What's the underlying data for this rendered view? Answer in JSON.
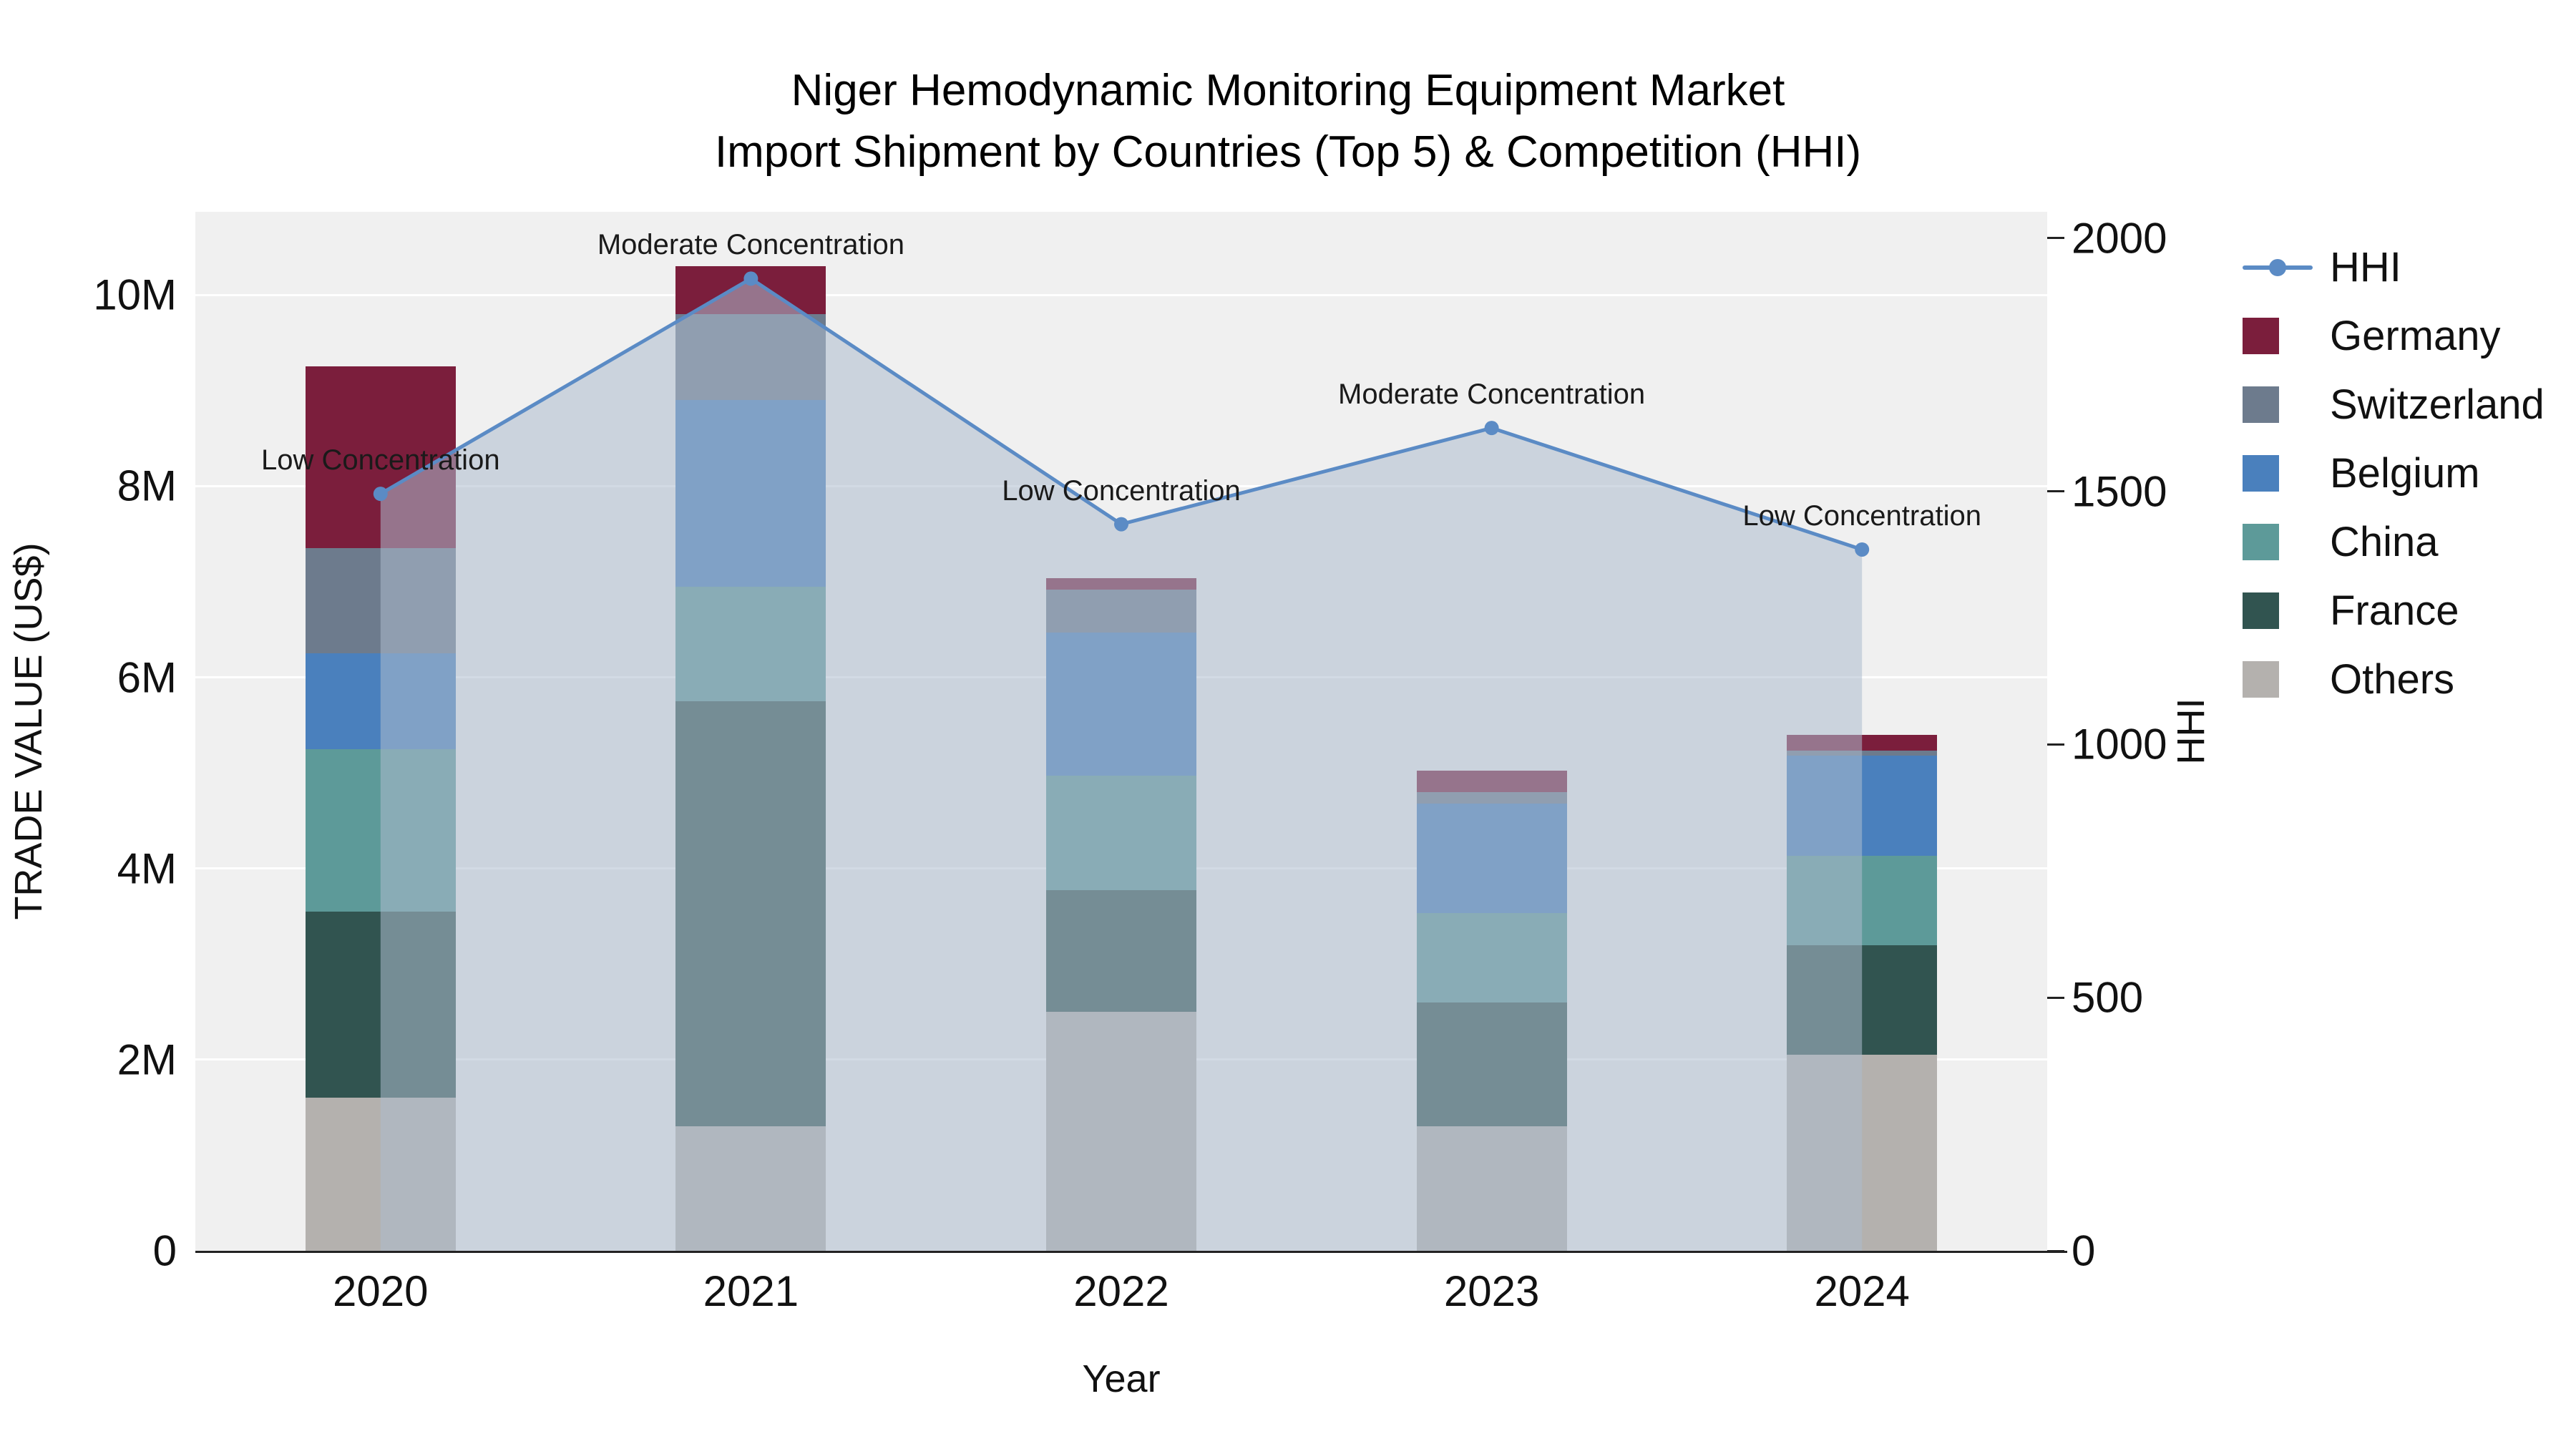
{
  "title": {
    "line1": "Niger Hemodynamic Monitoring Equipment Market",
    "line2": "Import Shipment by Countries (Top 5) & Competition (HHI)"
  },
  "axes": {
    "x": {
      "label": "Year"
    },
    "y_left": {
      "label": "TRADE VALUE (US$)"
    },
    "y_right": {
      "label": "HHI"
    }
  },
  "chart_data": {
    "type": "stacked-bar+line",
    "categories": [
      "2020",
      "2021",
      "2022",
      "2023",
      "2024"
    ],
    "bar_series": [
      {
        "name": "Germany",
        "color": "#7b1e3c",
        "values": [
          1900000,
          500000,
          120000,
          220000,
          170000
        ]
      },
      {
        "name": "Switzerland",
        "color": "#6d7b8d",
        "values": [
          1100000,
          900000,
          450000,
          120000,
          50000
        ]
      },
      {
        "name": "Belgium",
        "color": "#4a80bd",
        "values": [
          1000000,
          1950000,
          1500000,
          1150000,
          1050000
        ]
      },
      {
        "name": "China",
        "color": "#5d9a99",
        "values": [
          1700000,
          1200000,
          1200000,
          930000,
          930000
        ]
      },
      {
        "name": "France",
        "color": "#315450",
        "values": [
          1950000,
          4450000,
          1270000,
          1300000,
          1150000
        ]
      },
      {
        "name": "Others",
        "color": "#b4b1ae",
        "values": [
          1600000,
          1300000,
          2500000,
          1300000,
          2050000
        ]
      }
    ],
    "line_series": {
      "name": "HHI",
      "color": "#5b8bc5",
      "area_fill": "rgba(173,188,206,0.55)",
      "values": [
        1495,
        1920,
        1435,
        1625,
        1385
      ]
    },
    "annotations": [
      {
        "category": "2020",
        "text": "Low Concentration"
      },
      {
        "category": "2021",
        "text": "Moderate Concentration"
      },
      {
        "category": "2022",
        "text": "Low Concentration"
      },
      {
        "category": "2023",
        "text": "Moderate Concentration"
      },
      {
        "category": "2024",
        "text": "Low Concentration"
      }
    ],
    "yticks_left": [
      {
        "label": "0",
        "value": 0
      },
      {
        "label": "2M",
        "value": 2000000
      },
      {
        "label": "4M",
        "value": 4000000
      },
      {
        "label": "6M",
        "value": 6000000
      },
      {
        "label": "8M",
        "value": 8000000
      },
      {
        "label": "10M",
        "value": 10000000
      }
    ],
    "yticks_right": [
      {
        "label": "0",
        "value": 0
      },
      {
        "label": "500",
        "value": 500
      },
      {
        "label": "1000",
        "value": 1000
      },
      {
        "label": "1500",
        "value": 1500
      },
      {
        "label": "2000",
        "value": 2000
      }
    ],
    "ylim_left": [
      0,
      10870000
    ],
    "ylim_right": [
      0,
      2052
    ],
    "legend_position": "right",
    "grid": true
  }
}
